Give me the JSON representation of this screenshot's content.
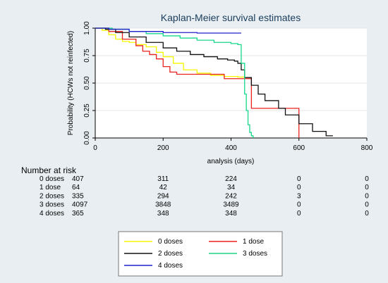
{
  "chart_data": {
    "type": "line",
    "title": "Kaplan-Meier survival estimates",
    "xlabel": "analysis  (days)",
    "ylabel": "Probability (HCWs not reinfected)",
    "xlim": [
      0,
      800
    ],
    "ylim": [
      0,
      1
    ],
    "xticks": [
      "0",
      "200",
      "400",
      "600",
      "800"
    ],
    "yticks": [
      "0.00",
      "0.25",
      "0.50",
      "0.75",
      "1.00"
    ],
    "series": [
      {
        "name": "0 doses",
        "color": "#f5f500",
        "x": [
          0,
          20,
          40,
          60,
          80,
          100,
          120,
          150,
          180,
          200,
          230,
          260,
          300,
          340,
          380,
          420,
          440
        ],
        "y": [
          1.0,
          0.98,
          0.94,
          0.9,
          0.88,
          0.87,
          0.85,
          0.83,
          0.78,
          0.74,
          0.68,
          0.62,
          0.59,
          0.57,
          0.56,
          0.555,
          0.555
        ]
      },
      {
        "name": "1 dose",
        "color": "#e8221e",
        "x": [
          0,
          40,
          80,
          120,
          140,
          160,
          180,
          200,
          220,
          240,
          300,
          380,
          400,
          425,
          460,
          560,
          595,
          600
        ],
        "y": [
          1.0,
          0.97,
          0.9,
          0.84,
          0.79,
          0.76,
          0.72,
          0.65,
          0.6,
          0.58,
          0.58,
          0.54,
          0.54,
          0.54,
          0.27,
          0.27,
          0.27,
          0.0
        ]
      },
      {
        "name": "2 doses",
        "color": "#111111",
        "x": [
          0,
          30,
          60,
          100,
          150,
          200,
          240,
          280,
          320,
          360,
          390,
          410,
          420,
          430,
          440,
          460,
          480,
          500,
          540,
          560,
          600,
          640,
          680,
          700
        ],
        "y": [
          1.0,
          0.99,
          0.96,
          0.92,
          0.87,
          0.82,
          0.79,
          0.76,
          0.74,
          0.72,
          0.71,
          0.7,
          0.68,
          0.62,
          0.55,
          0.48,
          0.4,
          0.34,
          0.27,
          0.21,
          0.13,
          0.06,
          0.02,
          0.02
        ]
      },
      {
        "name": "3 doses",
        "color": "#16d88a",
        "x": [
          0,
          50,
          100,
          150,
          200,
          250,
          300,
          350,
          400,
          420,
          430,
          440,
          445,
          450,
          455,
          460,
          465
        ],
        "y": [
          1.0,
          0.99,
          0.97,
          0.95,
          0.93,
          0.91,
          0.89,
          0.87,
          0.86,
          0.85,
          0.68,
          0.4,
          0.25,
          0.12,
          0.05,
          0.02,
          0.0
        ]
      },
      {
        "name": "4 doses",
        "color": "#2222cc",
        "x": [
          0,
          40,
          100,
          200,
          300,
          400,
          430
        ],
        "y": [
          1.0,
          0.99,
          0.97,
          0.96,
          0.955,
          0.955,
          0.955
        ]
      }
    ],
    "risk_table": {
      "header": "Number at risk",
      "times": [
        0,
        200,
        400,
        600,
        800
      ],
      "rows": [
        {
          "label": "0 doses",
          "values": [
            "407",
            "311",
            "224",
            "0",
            "0"
          ]
        },
        {
          "label": "1 dose",
          "values": [
            "64",
            "42",
            "34",
            "0",
            "0"
          ]
        },
        {
          "label": "2 doses",
          "values": [
            "335",
            "294",
            "242",
            "3",
            "0"
          ]
        },
        {
          "label": "3 doses",
          "values": [
            "4097",
            "3848",
            "3489",
            "0",
            "0"
          ]
        },
        {
          "label": "4 doses",
          "values": [
            "365",
            "348",
            "348",
            "0",
            "0"
          ]
        }
      ]
    },
    "legend": {
      "placement": "bottom",
      "entries": [
        {
          "label": "0 doses",
          "color": "#f5f500"
        },
        {
          "label": "1 dose",
          "color": "#e8221e"
        },
        {
          "label": "2 doses",
          "color": "#111111"
        },
        {
          "label": "3 doses",
          "color": "#16d88a"
        },
        {
          "label": "4 doses",
          "color": "#2222cc"
        }
      ]
    }
  }
}
